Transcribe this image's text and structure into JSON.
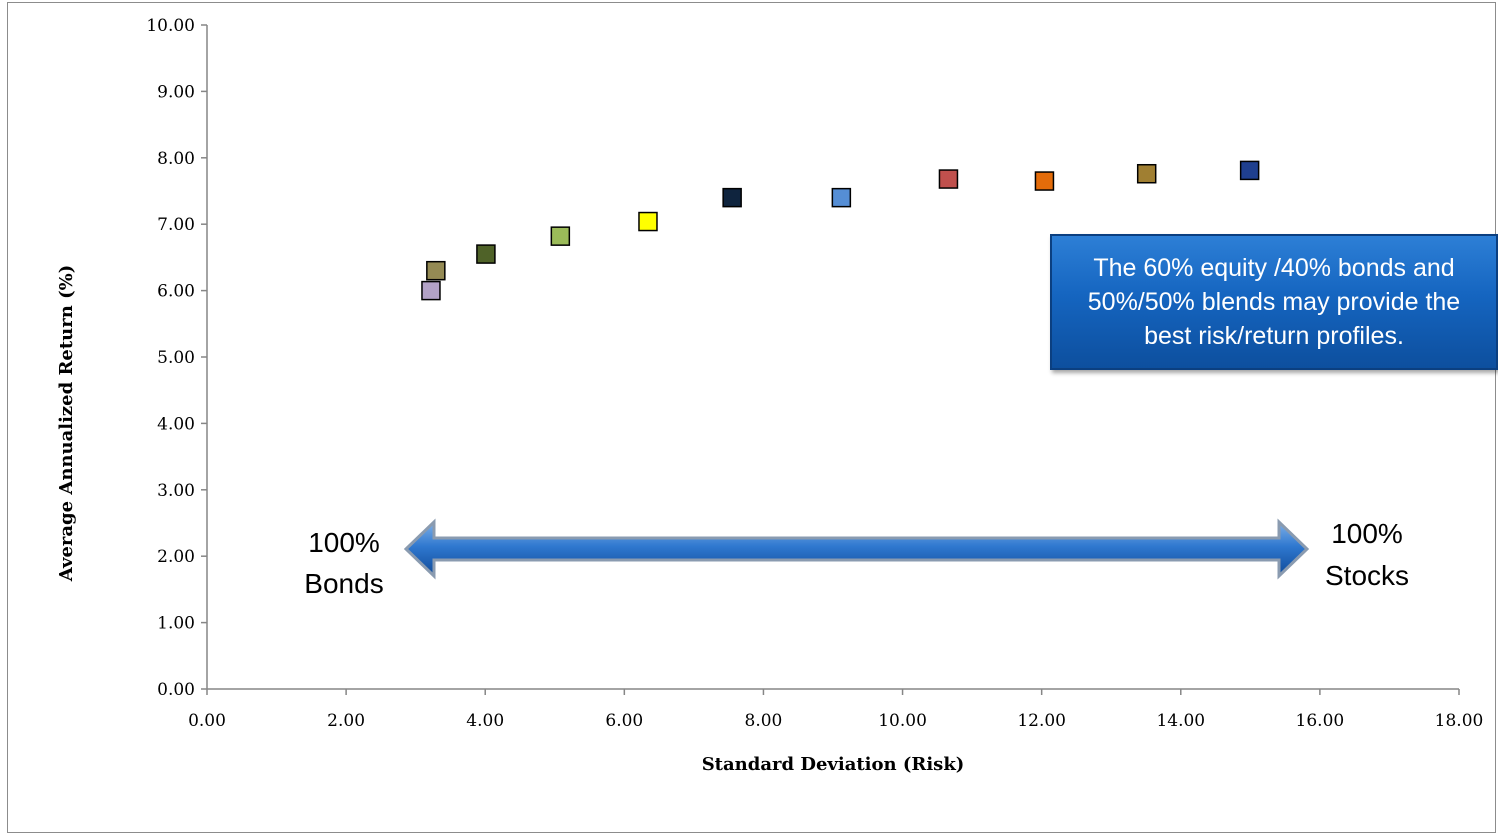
{
  "chart_data": {
    "type": "scatter",
    "title": "",
    "xlabel": "Standard Deviation (Risk)",
    "ylabel": "Average Annualized Return (%)",
    "xlim": [
      0,
      18
    ],
    "ylim": [
      0,
      10
    ],
    "x_ticks": [
      "0.00",
      "2.00",
      "4.00",
      "6.00",
      "8.00",
      "10.00",
      "12.00",
      "14.00",
      "16.00",
      "18.00"
    ],
    "y_ticks": [
      "0.00",
      "1.00",
      "2.00",
      "3.00",
      "4.00",
      "5.00",
      "6.00",
      "7.00",
      "8.00",
      "9.00",
      "10.00"
    ],
    "grid": false,
    "points": [
      {
        "x": 3.22,
        "y": 6.0,
        "color": "#b3a2c7"
      },
      {
        "x": 3.29,
        "y": 6.3,
        "color": "#948a54"
      },
      {
        "x": 4.01,
        "y": 6.55,
        "color": "#4f6228"
      },
      {
        "x": 5.08,
        "y": 6.82,
        "color": "#9bbb59"
      },
      {
        "x": 6.34,
        "y": 7.04,
        "color": "#ffff00"
      },
      {
        "x": 7.55,
        "y": 7.4,
        "color": "#0f243e"
      },
      {
        "x": 9.12,
        "y": 7.4,
        "color": "#558ed5"
      },
      {
        "x": 10.66,
        "y": 7.68,
        "color": "#c0504d"
      },
      {
        "x": 12.04,
        "y": 7.65,
        "color": "#e46c0a"
      },
      {
        "x": 13.51,
        "y": 7.76,
        "color": "#a07f32"
      },
      {
        "x": 14.99,
        "y": 7.81,
        "color": "#1f3f8f"
      }
    ]
  },
  "annotations": {
    "callout_text": "The 60% equity /40% bonds and 50%/50% blends may provide the best risk/return profiles.",
    "left_label_line1": "100%",
    "left_label_line2": "Bonds",
    "right_label_line1": "100%",
    "right_label_line2": "Stocks"
  },
  "colors": {
    "arrow": "#1e63b8",
    "callout_bg": "#1565c0"
  }
}
